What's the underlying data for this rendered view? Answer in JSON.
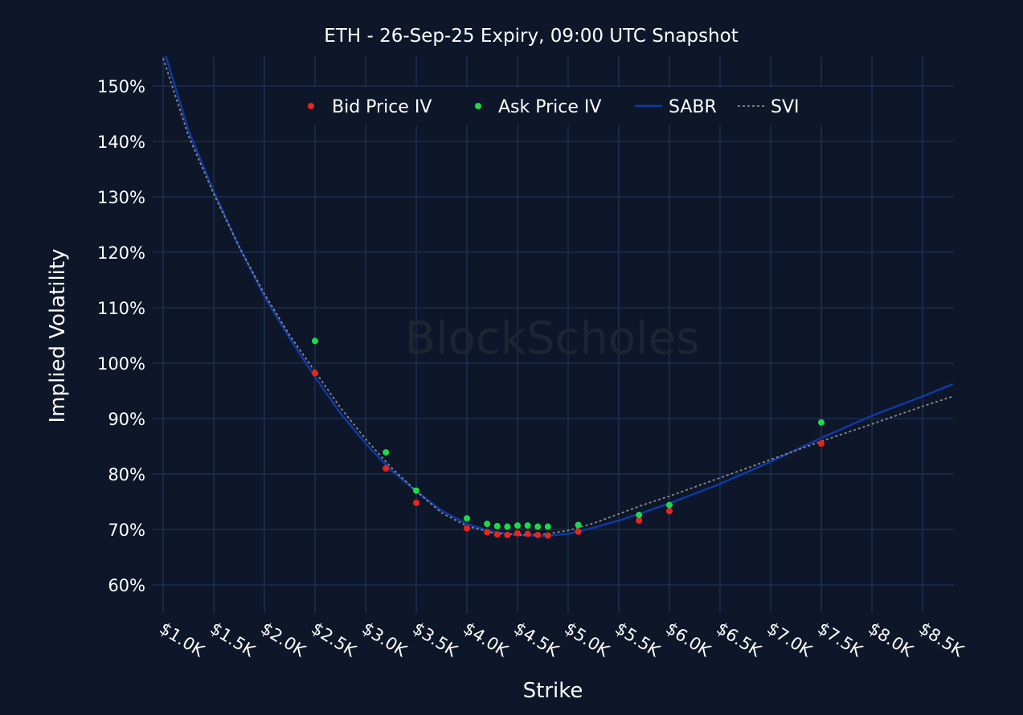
{
  "chart_data": {
    "type": "scatter",
    "title": "ETH - 26-Sep-25 Expiry, 09:00 UTC Snapshot",
    "xlabel": "Strike",
    "ylabel": "Implied Volatility",
    "watermark": "BlockScholes",
    "xlim": [
      1000,
      8800
    ],
    "ylim": [
      55,
      155
    ],
    "x_ticks": [
      1000,
      1500,
      2000,
      2500,
      3000,
      3500,
      4000,
      4500,
      5000,
      5500,
      6000,
      6500,
      7000,
      7500,
      8000,
      8500
    ],
    "x_tick_labels": [
      "$1.0K",
      "$1.5K",
      "$2.0K",
      "$2.5K",
      "$3.0K",
      "$3.5K",
      "$4.0K",
      "$4.5K",
      "$5.0K",
      "$5.5K",
      "$6.0K",
      "$6.5K",
      "$7.0K",
      "$7.5K",
      "$8.0K",
      "$8.5K"
    ],
    "y_ticks": [
      60,
      70,
      80,
      90,
      100,
      110,
      120,
      130,
      140,
      150
    ],
    "y_tick_labels": [
      "60%",
      "70%",
      "80%",
      "90%",
      "100%",
      "110%",
      "120%",
      "130%",
      "140%",
      "150%"
    ],
    "grid": true,
    "legend_position": "top-center",
    "series": [
      {
        "name": "Bid Price IV",
        "kind": "scatter",
        "color": "#e8251c",
        "x": [
          2500,
          3200,
          3500,
          4000,
          4200,
          4300,
          4400,
          4500,
          4600,
          4700,
          4800,
          5100,
          5700,
          6000,
          7500
        ],
        "y": [
          98.2,
          81.0,
          74.8,
          70.2,
          69.5,
          69.1,
          69.0,
          69.3,
          69.2,
          69.0,
          68.9,
          69.6,
          71.6,
          73.3,
          85.5
        ]
      },
      {
        "name": "Ask Price IV",
        "kind": "scatter",
        "color": "#1ed94a",
        "x": [
          2500,
          3200,
          3500,
          4000,
          4200,
          4300,
          4400,
          4500,
          4600,
          4700,
          4800,
          5100,
          5700,
          6000,
          7500
        ],
        "y": [
          104.0,
          83.9,
          77.0,
          72.0,
          71.0,
          70.6,
          70.5,
          70.7,
          70.7,
          70.5,
          70.5,
          70.8,
          72.6,
          74.4,
          89.3
        ]
      },
      {
        "name": "SABR",
        "kind": "line",
        "color": "#0e3aa6",
        "x": [
          1000,
          1250,
          1500,
          1750,
          2000,
          2250,
          2500,
          2750,
          3000,
          3250,
          3500,
          3750,
          4000,
          4250,
          4500,
          4750,
          5000,
          5250,
          5500,
          5750,
          6000,
          6500,
          7000,
          7500,
          8000,
          8500,
          8800
        ],
        "y": [
          157,
          142,
          131,
          121,
          112,
          104.5,
          97.5,
          91,
          85.5,
          80.7,
          76.9,
          73.4,
          71.0,
          69.6,
          69.0,
          68.8,
          69.2,
          70.3,
          71.6,
          73.1,
          74.7,
          78.2,
          82.2,
          86.5,
          90.5,
          94.0,
          96.2
        ]
      },
      {
        "name": "SVI",
        "kind": "dotted-line",
        "color": "#8a8a8a",
        "x": [
          1000,
          1250,
          1500,
          1750,
          2000,
          2250,
          2500,
          2750,
          3000,
          3250,
          3500,
          3750,
          4000,
          4250,
          4500,
          4750,
          5000,
          5250,
          5500,
          5750,
          6000,
          6500,
          7000,
          7500,
          8000,
          8500,
          8800
        ],
        "y": [
          155,
          141,
          130.5,
          121,
          112.5,
          105,
          98.5,
          92,
          86.3,
          81.2,
          76.9,
          73.0,
          70.6,
          69.4,
          69.0,
          69.1,
          69.8,
          71.1,
          72.8,
          74.5,
          76.0,
          79.3,
          82.6,
          85.9,
          89.0,
          92.2,
          94.0
        ]
      }
    ]
  }
}
